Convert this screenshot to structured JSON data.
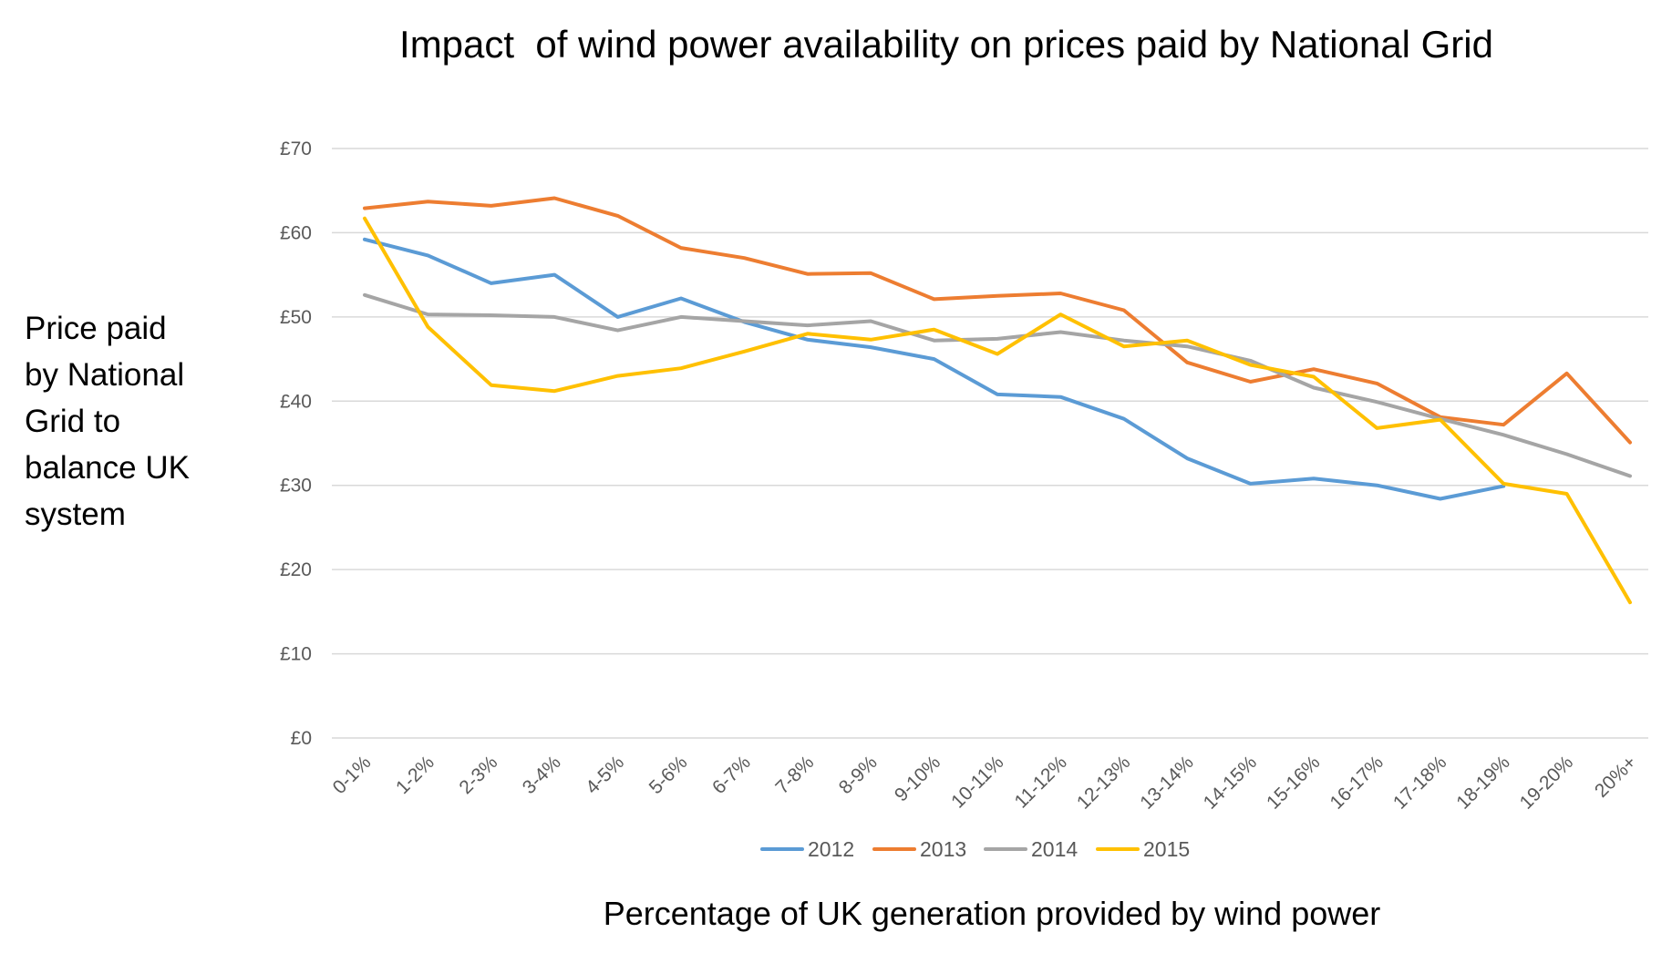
{
  "chart_data": {
    "type": "line",
    "title": "Impact  of wind power availability on prices paid by National Grid",
    "xlabel": "Percentage of UK generation provided by wind power",
    "ylabel_lines": [
      "Price paid",
      "by National",
      "Grid to",
      "balance UK",
      "system"
    ],
    "ylim": [
      0,
      70
    ],
    "yticks": [
      0,
      10,
      20,
      30,
      40,
      50,
      60,
      70
    ],
    "ytick_labels": [
      "£0",
      "£10",
      "£20",
      "£30",
      "£40",
      "£50",
      "£60",
      "£70"
    ],
    "categories": [
      "0-1%",
      "1-2%",
      "2-3%",
      "3-4%",
      "4-5%",
      "5-6%",
      "6-7%",
      "7-8%",
      "8-9%",
      "9-10%",
      "10-11%",
      "11-12%",
      "12-13%",
      "13-14%",
      "14-15%",
      "15-16%",
      "16-17%",
      "17-18%",
      "18-19%",
      "19-20%",
      "20%+"
    ],
    "grid": true,
    "legend_position": "bottom",
    "series": [
      {
        "name": "2012",
        "color": "#5b9bd5",
        "values": [
          59.2,
          57.3,
          54.0,
          55.0,
          50.0,
          52.2,
          49.4,
          47.3,
          46.4,
          45.0,
          40.8,
          40.5,
          37.9,
          33.2,
          30.2,
          30.8,
          30.0,
          28.4,
          29.9,
          null,
          null
        ]
      },
      {
        "name": "2013",
        "color": "#ed7d31",
        "values": [
          62.9,
          63.7,
          63.2,
          64.1,
          62.0,
          58.2,
          57.0,
          55.1,
          55.2,
          52.1,
          52.5,
          52.8,
          50.8,
          44.6,
          42.3,
          43.8,
          42.1,
          38.1,
          37.2,
          43.3,
          35.1
        ]
      },
      {
        "name": "2014",
        "color": "#a5a5a5",
        "values": [
          52.6,
          50.3,
          50.2,
          50.0,
          48.4,
          50.0,
          49.5,
          49.0,
          49.5,
          47.2,
          47.4,
          48.2,
          47.2,
          46.5,
          44.8,
          41.6,
          39.9,
          37.9,
          36.0,
          33.7,
          31.1
        ]
      },
      {
        "name": "2015",
        "color": "#ffc000",
        "values": [
          61.7,
          48.8,
          41.9,
          41.2,
          43.0,
          43.9,
          45.9,
          48.0,
          47.3,
          48.5,
          45.6,
          50.3,
          46.5,
          47.2,
          44.3,
          42.9,
          36.8,
          37.8,
          30.2,
          29.0,
          16.1
        ]
      }
    ]
  }
}
